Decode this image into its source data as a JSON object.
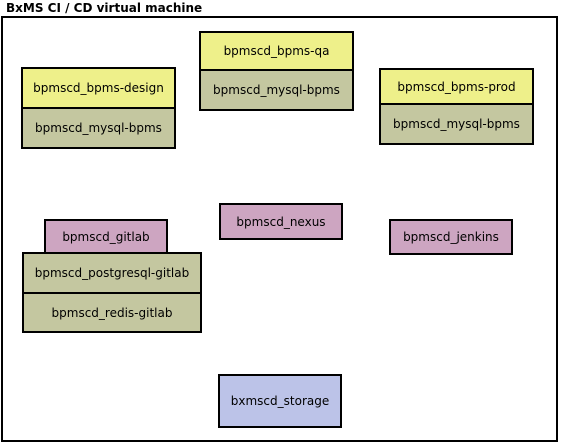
{
  "title": "BxMS CI / CD virtual machine",
  "colors": {
    "app": "#eef08a",
    "db": "#c4c7a0",
    "service": "#cda5c1",
    "storage": "#bcc3e8",
    "border": "#000000"
  },
  "nodes": {
    "design_app": "bpmscd_bpms-design",
    "design_db": "bpmscd_mysql-bpms",
    "qa_app": "bpmscd_bpms-qa",
    "qa_db": "bpmscd_mysql-bpms",
    "prod_app": "bpmscd_bpms-prod",
    "prod_db": "bpmscd_mysql-bpms",
    "gitlab": "bpmscd_gitlab",
    "postgres": "bpmscd_postgresql-gitlab",
    "redis": "bpmscd_redis-gitlab",
    "nexus": "bpmscd_nexus",
    "jenkins": "bpmscd_jenkins",
    "storage": "bxmscd_storage"
  }
}
